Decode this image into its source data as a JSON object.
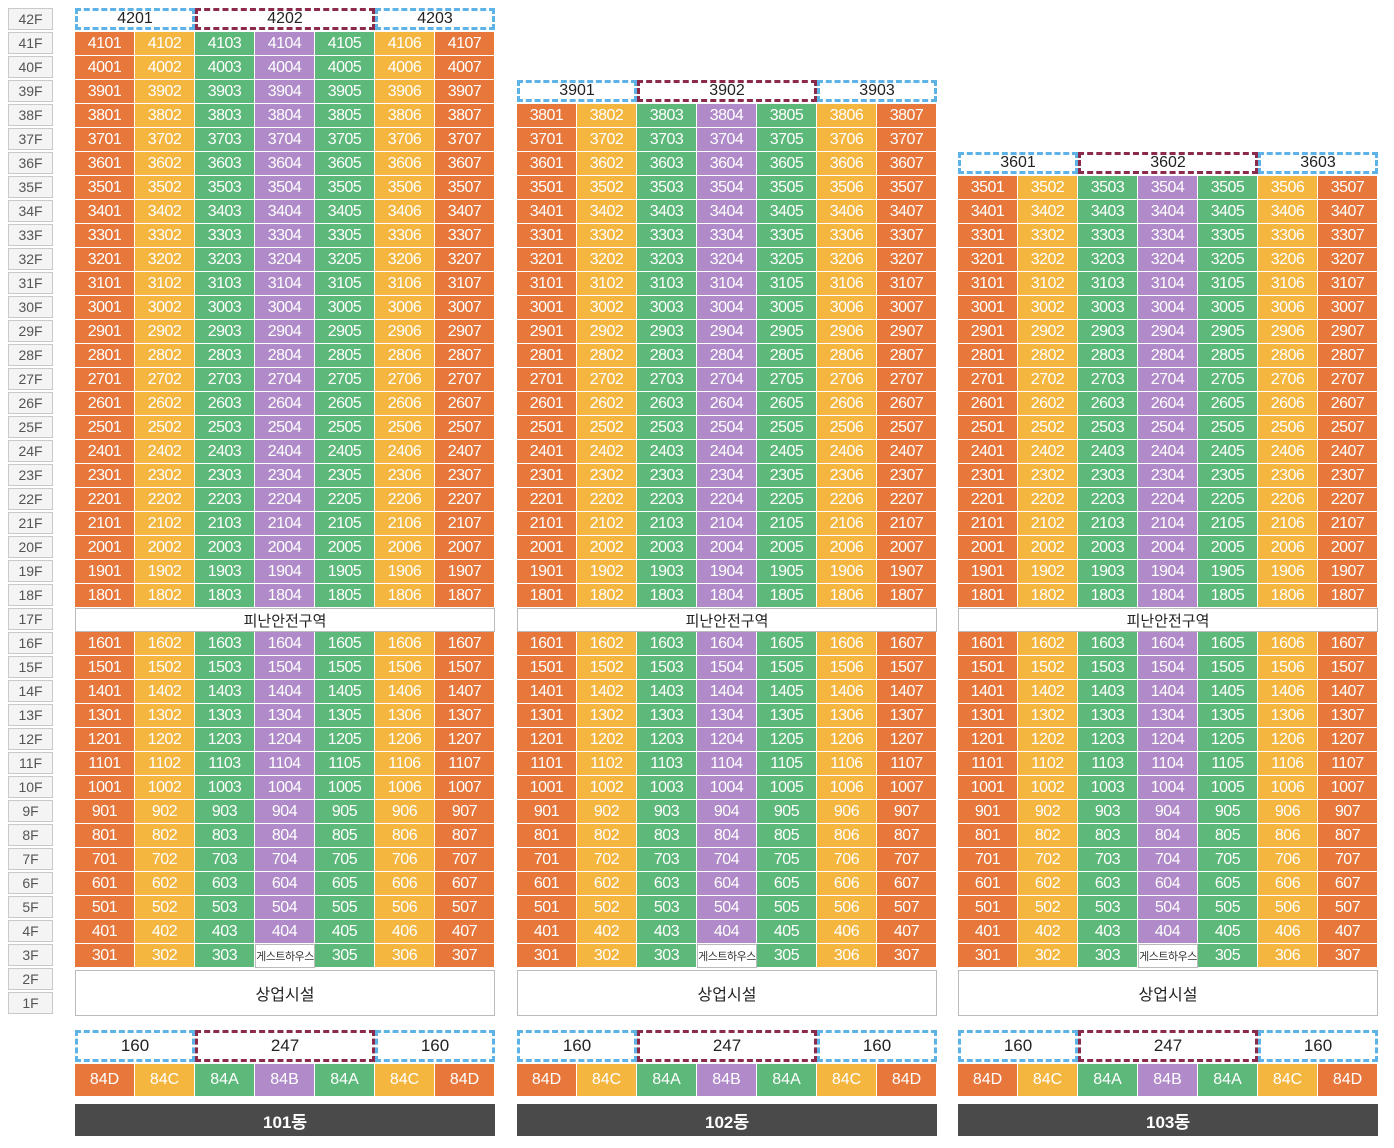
{
  "floors": [
    "42F",
    "41F",
    "40F",
    "39F",
    "38F",
    "37F",
    "36F",
    "35F",
    "34F",
    "33F",
    "32F",
    "31F",
    "30F",
    "29F",
    "28F",
    "27F",
    "26F",
    "25F",
    "24F",
    "23F",
    "22F",
    "21F",
    "20F",
    "19F",
    "18F",
    "17F",
    "16F",
    "15F",
    "14F",
    "13F",
    "12F",
    "11F",
    "10F",
    "9F",
    "8F",
    "7F",
    "6F",
    "5F",
    "4F",
    "3F",
    "2F",
    "1F"
  ],
  "colors": {
    "orange": "#e8773c",
    "yellow": "#f4b63f",
    "green": "#5cb97a",
    "purple": "#b08ac9",
    "blue_dash": "#5db3e6",
    "red_dash": "#8c2a4a"
  },
  "unit_color_pattern": [
    "orange",
    "yellow",
    "green",
    "purple",
    "green",
    "yellow",
    "orange"
  ],
  "refuge_label": "피난안전구역",
  "commercial_label": "상업시설",
  "guesthouse_label": "게스트하우스",
  "buildings": [
    {
      "name": "101동",
      "top_floor": 42,
      "penthouses": [
        "4201",
        "4202",
        "4203"
      ],
      "sizes": [
        "160",
        "247",
        "160"
      ],
      "types": [
        "84D",
        "84C",
        "84A",
        "84B",
        "84A",
        "84C",
        "84D"
      ]
    },
    {
      "name": "102동",
      "top_floor": 39,
      "penthouses": [
        "3901",
        "3902",
        "3903"
      ],
      "sizes": [
        "160",
        "247",
        "160"
      ],
      "types": [
        "84D",
        "84C",
        "84A",
        "84B",
        "84A",
        "84C",
        "84D"
      ]
    },
    {
      "name": "103동",
      "top_floor": 36,
      "penthouses": [
        "3601",
        "3602",
        "3603"
      ],
      "sizes": [
        "160",
        "247",
        "160"
      ],
      "types": [
        "84D",
        "84C",
        "84A",
        "84B",
        "84A",
        "84C",
        "84D"
      ]
    }
  ]
}
